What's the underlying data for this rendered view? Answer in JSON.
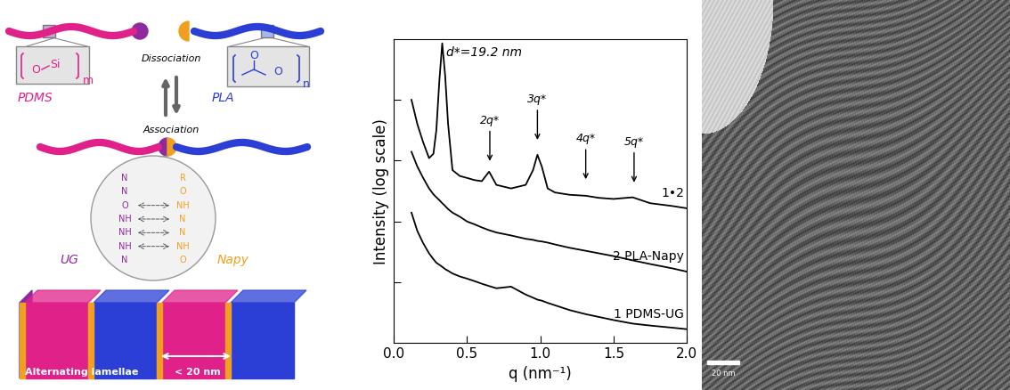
{
  "schematic": {
    "polymers": [
      {
        "name": "PDMS",
        "repeat_unit": [
          "O",
          "Si"
        ],
        "subscript": "m"
      },
      {
        "name": "PLA",
        "repeat_unit": [
          "O",
          "O"
        ],
        "subscript": "n"
      }
    ],
    "equilibrium": [
      "Dissociation",
      "Association"
    ],
    "motifs": [
      {
        "name": "UG",
        "atoms": [
          "N",
          "N",
          "O",
          "NH",
          "NH",
          "NH",
          "N"
        ]
      },
      {
        "name": "Napy",
        "atoms": [
          "R",
          "O",
          "NH",
          "N",
          "N",
          "NH",
          "O"
        ]
      }
    ],
    "morphology": {
      "label": "Alternating lamellae",
      "spacing": "< 20 nm"
    }
  },
  "chart_data": {
    "type": "line",
    "xlabel": "q (nm⁻¹)",
    "ylabel": "Intensity (log scale)",
    "x": [
      0.12,
      0.16,
      0.2,
      0.24,
      0.27,
      0.29,
      0.31,
      0.33,
      0.35,
      0.37,
      0.4,
      0.45,
      0.5,
      0.55,
      0.6,
      0.65,
      0.7,
      0.8,
      0.9,
      0.95,
      0.98,
      1.01,
      1.05,
      1.1,
      1.2,
      1.31,
      1.4,
      1.5,
      1.63,
      1.75,
      1.9,
      2.0
    ],
    "series": [
      {
        "name": "1•2",
        "color": "#000000",
        "values": [
          10000,
          4000,
          2000,
          1100,
          1300,
          3200,
          20000,
          85000,
          25000,
          4000,
          700,
          560,
          520,
          480,
          460,
          660,
          400,
          350,
          400,
          700,
          1250,
          800,
          350,
          300,
          275,
          265,
          245,
          235,
          250,
          200,
          180,
          165
        ]
      },
      {
        "name": "2 PLA-Napy",
        "color": "#000000",
        "values": [
          1400,
          800,
          520,
          350,
          280,
          250,
          225,
          200,
          180,
          160,
          140,
          120,
          100,
          90,
          80,
          72,
          66,
          59,
          52,
          50,
          48,
          47,
          45,
          42,
          37,
          33,
          30,
          27,
          23,
          20,
          17,
          15
        ]
      },
      {
        "name": "1 PDMS-UG",
        "color": "#000000",
        "values": [
          140,
          70,
          44,
          30,
          24,
          21,
          19.5,
          18,
          16.5,
          15.5,
          14,
          12.5,
          11.5,
          10.5,
          9.5,
          8.7,
          8,
          8.5,
          6.3,
          5.6,
          5.2,
          5,
          4.6,
          4.2,
          3.5,
          3,
          2.7,
          2.4,
          2.1,
          1.95,
          1.8,
          1.7
        ]
      }
    ],
    "xlim": [
      0,
      2.0
    ],
    "xticks": [
      {
        "value": 0,
        "label": "0.0"
      },
      {
        "value": 0.5,
        "label": "0.5"
      },
      {
        "value": 1.0,
        "label": "1.0"
      },
      {
        "value": 1.5,
        "label": "1.5"
      },
      {
        "value": 2.0,
        "label": "2.0"
      }
    ],
    "ylim": [
      1,
      100000
    ],
    "yticks": [
      10,
      100,
      1000,
      10000
    ],
    "log": "y",
    "tick_labels": "x",
    "annotations": [
      {
        "text": "d*=19.2 nm",
        "x": 0.36,
        "y": 60000
      }
    ],
    "peak_marks": [
      {
        "text": "2q*",
        "x": 0.655,
        "y": 900
      },
      {
        "text": "3q*",
        "x": 0.98,
        "y": 2000
      },
      {
        "text": "4q*",
        "x": 1.31,
        "y": 450
      },
      {
        "text": "5q*",
        "x": 1.64,
        "y": 400
      }
    ]
  },
  "micrograph": {
    "scale_bar": "20 nm"
  }
}
